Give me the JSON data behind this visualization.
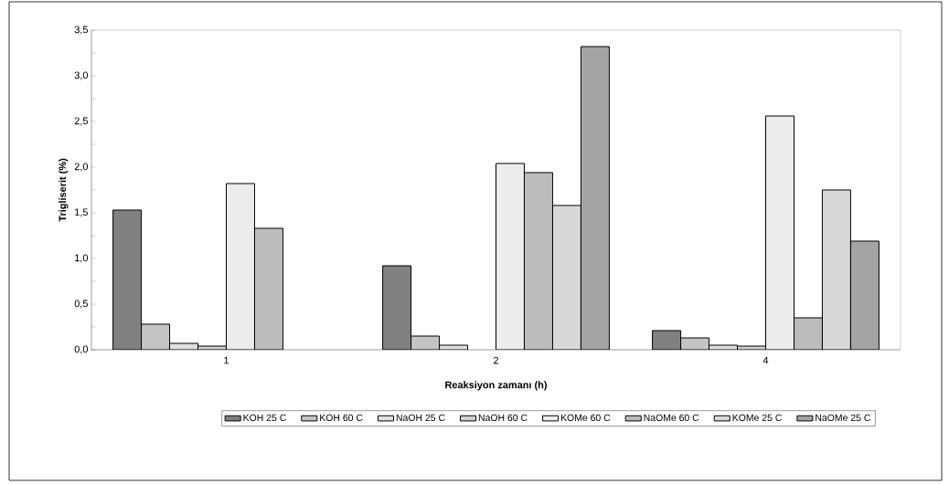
{
  "chart_data": {
    "type": "bar",
    "xlabel": "Reaksiyon zamanı (h)",
    "ylabel": "Trigliserit  (%)",
    "categories": [
      "1",
      "2",
      "4"
    ],
    "series": [
      {
        "name": "KOH 25 C",
        "color": "#808080",
        "values": [
          1.53,
          0.92,
          0.21
        ]
      },
      {
        "name": "KOH 60 C",
        "color": "#c4c4c4",
        "values": [
          0.28,
          0.15,
          0.13
        ]
      },
      {
        "name": "NaOH 25 C",
        "color": "#e0e0e0",
        "values": [
          0.07,
          0.05,
          0.05
        ]
      },
      {
        "name": "NaOH 60 C",
        "color": "#d0d0d0",
        "values": [
          0.04,
          null,
          0.04
        ]
      },
      {
        "name": "KOMe 60 C",
        "color": "#ececec",
        "values": [
          1.82,
          2.04,
          2.56
        ]
      },
      {
        "name": "NaOMe 60 C",
        "color": "#bcbcbc",
        "values": [
          1.33,
          1.94,
          0.35
        ]
      },
      {
        "name": "KOMe 25 C",
        "color": "#d8d8d8",
        "values": [
          null,
          1.58,
          1.75
        ]
      },
      {
        "name": "NaOMe 25 C",
        "color": "#a4a4a4",
        "values": [
          null,
          3.32,
          1.19
        ]
      }
    ],
    "ylim": [
      0,
      3.5
    ],
    "yticks": [
      {
        "value": 0,
        "label": "0,0"
      },
      {
        "value": 0.25,
        "label": null
      },
      {
        "value": 0.5,
        "label": "0,5"
      },
      {
        "value": 0.75,
        "label": null
      },
      {
        "value": 1,
        "label": "1,0"
      },
      {
        "value": 1.25,
        "label": null
      },
      {
        "value": 1.5,
        "label": "1,5"
      },
      {
        "value": 1.75,
        "label": null
      },
      {
        "value": 2,
        "label": "2,0"
      },
      {
        "value": 2.25,
        "label": null
      },
      {
        "value": 2.5,
        "label": "2,5"
      },
      {
        "value": 2.75,
        "label": null
      },
      {
        "value": 3,
        "label": "3,0"
      },
      {
        "value": 3.25,
        "label": null
      },
      {
        "value": 3.5,
        "label": "3,5"
      }
    ],
    "legend": "bottom"
  }
}
